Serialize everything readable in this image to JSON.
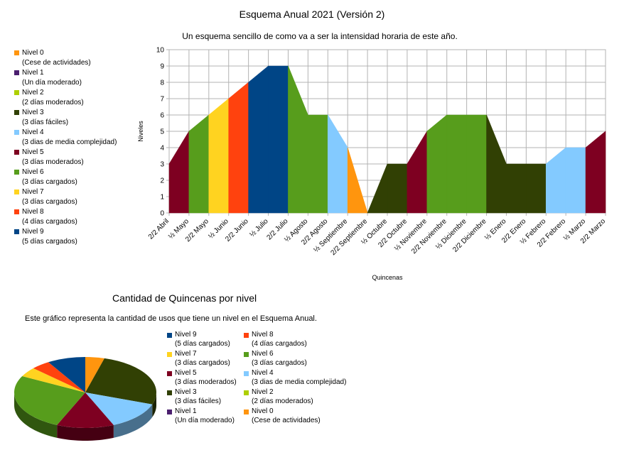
{
  "colors": {
    "level0": "#ff950e",
    "level1": "#4b1f6f",
    "level2": "#aecf00",
    "level3": "#314004",
    "level4": "#83caff",
    "level5": "#7e0021",
    "level6": "#579d1c",
    "level7": "#ffd320",
    "level8": "#ff420e",
    "level9": "#004586"
  },
  "levels": [
    {
      "name": "Nivel 0",
      "desc": "(Cese de actividades)",
      "color_key": "level0"
    },
    {
      "name": "Nivel 1",
      "desc": "(Un día moderado)",
      "color_key": "level1"
    },
    {
      "name": "Nivel 2",
      "desc": "(2 días moderados)",
      "color_key": "level2"
    },
    {
      "name": "Nivel 3",
      "desc": "(3 días fáciles)",
      "color_key": "level3"
    },
    {
      "name": "Nivel 4",
      "desc": "(3 dias de media complejidad)",
      "color_key": "level4"
    },
    {
      "name": "Nivel 5",
      "desc": "(3 días moderados)",
      "color_key": "level5"
    },
    {
      "name": "Nivel 6",
      "desc": "(3 días cargados)",
      "color_key": "level6"
    },
    {
      "name": "Nivel 7",
      "desc": "(3 días cargados)",
      "color_key": "level7"
    },
    {
      "name": "Nivel 8",
      "desc": "(4 días cargados)",
      "color_key": "level8"
    },
    {
      "name": "Nivel 9",
      "desc": "(5 días cargados)",
      "color_key": "level9"
    }
  ],
  "chart_data": [
    {
      "type": "area",
      "title": "Esquema Anual 2021 (Versión 2)",
      "subtitle": "Un esquema sencillo de como va a ser la intensidad horaria de este año.",
      "xlabel": "Quincenas",
      "ylabel": "Niveles",
      "ylim": [
        0,
        10
      ],
      "yticks": [
        0,
        1,
        2,
        3,
        4,
        5,
        6,
        7,
        8,
        9,
        10
      ],
      "grid": true,
      "legend": "left",
      "categories": [
        "2/2 Abril",
        "½ Mayo",
        "2/2 Mayo",
        "½ Junio",
        "2/2 Junio",
        "½ Julio",
        "2/2 Julio",
        "½ Agosto",
        "2/2 Agosto",
        "½ Septiembre",
        "2/2 Septiembre",
        "½ Octubre",
        "2/2 Octubre",
        "½ Noviembre",
        "2/2 Noviembre",
        "½ Diciembre",
        "2/2 Diciembre",
        "½ Enero",
        "2/2 Enero",
        "½ Febrero",
        "2/2 Febrero",
        "½ Marzo",
        "2/2 Marzo"
      ],
      "values": [
        3,
        5,
        6,
        7,
        8,
        9,
        9,
        6,
        6,
        4,
        0,
        3,
        3,
        5,
        6,
        6,
        6,
        3,
        3,
        3,
        4,
        4,
        5
      ],
      "level_per_quincena": [
        3,
        5,
        6,
        7,
        8,
        9,
        9,
        6,
        6,
        4,
        0,
        3,
        3,
        5,
        6,
        6,
        6,
        3,
        3,
        3,
        4,
        4,
        5
      ]
    },
    {
      "type": "pie",
      "title": "Cantidad de Quincenas por nivel",
      "subtitle": "Este gráfico representa la cantidad de usos que tiene un nivel en el Esquema Anual.",
      "legend": "right",
      "categories": [
        "Nivel 0",
        "Nivel 3",
        "Nivel 4",
        "Nivel 5",
        "Nivel 6",
        "Nivel 7",
        "Nivel 8",
        "Nivel 9"
      ],
      "values": [
        1,
        6,
        3,
        3,
        6,
        1,
        1,
        2
      ]
    }
  ]
}
